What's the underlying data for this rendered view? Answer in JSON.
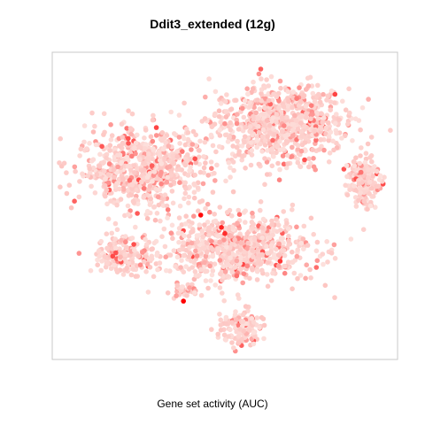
{
  "chart_data": {
    "type": "scatter",
    "title": "Ddit3_extended (12g)",
    "xlabel": "Gene set activity (AUC)",
    "ylabel": "",
    "grid": false,
    "legend": "none",
    "axes_ticks": "none",
    "colors": {
      "low": "#fde0dc",
      "high": "#ff0000",
      "frame": "#c8c8c8"
    },
    "point_count_estimate": 3000,
    "clusters": [
      {
        "name": "upper-right",
        "cx": 0.66,
        "cy": 0.77,
        "sx": 0.13,
        "sy": 0.085,
        "n": 820
      },
      {
        "name": "upper-left",
        "cx": 0.26,
        "cy": 0.62,
        "sx": 0.13,
        "sy": 0.085,
        "n": 720
      },
      {
        "name": "center",
        "cx": 0.53,
        "cy": 0.36,
        "sx": 0.15,
        "sy": 0.07,
        "n": 720
      },
      {
        "name": "right-island",
        "cx": 0.9,
        "cy": 0.58,
        "sx": 0.03,
        "sy": 0.05,
        "n": 170
      },
      {
        "name": "left-lower-island",
        "cx": 0.21,
        "cy": 0.34,
        "sx": 0.06,
        "sy": 0.04,
        "n": 180
      },
      {
        "name": "bottom-island",
        "cx": 0.54,
        "cy": 0.1,
        "sx": 0.045,
        "sy": 0.04,
        "n": 140
      },
      {
        "name": "small-left",
        "cx": 0.38,
        "cy": 0.22,
        "sx": 0.025,
        "sy": 0.015,
        "n": 35
      }
    ],
    "high_activity_points": [
      {
        "x": 0.38,
        "y": 0.19,
        "v": 1.0
      },
      {
        "x": 0.43,
        "y": 0.47,
        "v": 0.95
      },
      {
        "x": 0.49,
        "y": 0.43,
        "v": 0.85
      },
      {
        "x": 0.5,
        "y": 0.41,
        "v": 0.8
      },
      {
        "x": 0.66,
        "y": 0.32,
        "v": 0.75
      }
    ]
  }
}
